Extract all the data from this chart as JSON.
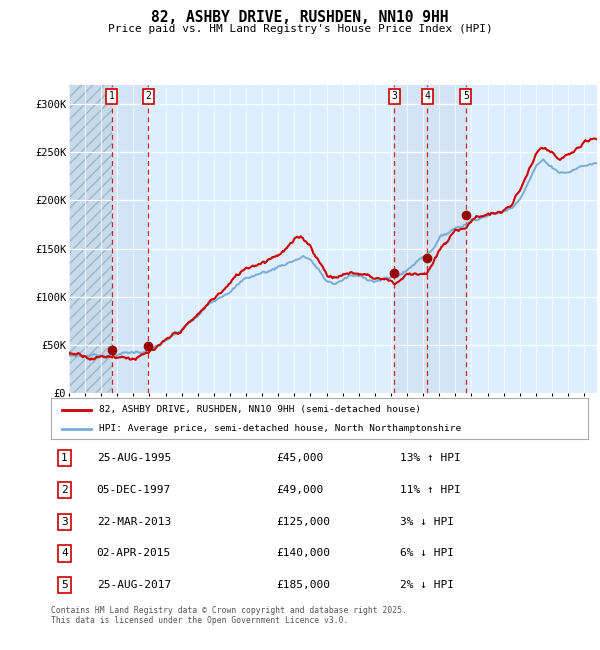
{
  "title": "82, ASHBY DRIVE, RUSHDEN, NN10 9HH",
  "subtitle": "Price paid vs. HM Land Registry's House Price Index (HPI)",
  "legend_line1": "82, ASHBY DRIVE, RUSHDEN, NN10 9HH (semi-detached house)",
  "legend_line2": "HPI: Average price, semi-detached house, North Northamptonshire",
  "footer": "Contains HM Land Registry data © Crown copyright and database right 2025.\nThis data is licensed under the Open Government Licence v3.0.",
  "transactions": [
    {
      "num": 1,
      "date": "25-AUG-1995",
      "price": 45000,
      "hpi": "13% ↑ HPI",
      "x": 1995.65
    },
    {
      "num": 2,
      "date": "05-DEC-1997",
      "price": 49000,
      "hpi": "11% ↑ HPI",
      "x": 1997.92
    },
    {
      "num": 3,
      "date": "22-MAR-2013",
      "price": 125000,
      "hpi": "3% ↓ HPI",
      "x": 2013.22
    },
    {
      "num": 4,
      "date": "02-APR-2015",
      "price": 140000,
      "hpi": "6% ↓ HPI",
      "x": 2015.25
    },
    {
      "num": 5,
      "date": "25-AUG-2017",
      "price": 185000,
      "hpi": "2% ↓ HPI",
      "x": 2017.65
    }
  ],
  "hpi_color": "#7aadd4",
  "price_color": "#cc0000",
  "background_color": "#ddeeff",
  "ylim": [
    0,
    320000
  ],
  "yticks": [
    0,
    50000,
    100000,
    150000,
    200000,
    250000,
    300000
  ],
  "xlim_start": 1993,
  "xlim_end": 2025.8,
  "hpi_anchors": {
    "1993.0": 38000,
    "1994.0": 39000,
    "1995.0": 40500,
    "1996.0": 43000,
    "1997.0": 44500,
    "1998.0": 48000,
    "1999.0": 55000,
    "2000.0": 65000,
    "2001.0": 78000,
    "2002.0": 95000,
    "2003.0": 110000,
    "2004.0": 122000,
    "2005.0": 128000,
    "2005.5": 130000,
    "2006.0": 135000,
    "2007.0": 143000,
    "2007.5": 147000,
    "2008.0": 144000,
    "2008.5": 132000,
    "2009.0": 120000,
    "2009.5": 118000,
    "2010.0": 122000,
    "2010.5": 126000,
    "2011.0": 124000,
    "2012.0": 122000,
    "2013.0": 124000,
    "2013.22": 125000,
    "2014.0": 132000,
    "2015.0": 148000,
    "2015.25": 150000,
    "2016.0": 168000,
    "2017.0": 180000,
    "2017.65": 185000,
    "2018.0": 190000,
    "2019.0": 198000,
    "2020.0": 200000,
    "2020.5": 205000,
    "2021.0": 218000,
    "2022.0": 252000,
    "2022.5": 258000,
    "2023.0": 252000,
    "2023.5": 248000,
    "2024.0": 248000,
    "2024.5": 252000,
    "2025.0": 255000,
    "2025.8": 258000
  },
  "price_anchors": {
    "1993.0": 41000,
    "1994.0": 42000,
    "1995.0": 43000,
    "1995.65": 45000,
    "1996.0": 46000,
    "1997.0": 47000,
    "1997.92": 49000,
    "1998.0": 50000,
    "1999.0": 56000,
    "2000.0": 67000,
    "2001.0": 80000,
    "2002.0": 97000,
    "2003.0": 112000,
    "2004.0": 128000,
    "2005.0": 138000,
    "2006.0": 150000,
    "2007.0": 163000,
    "2007.5": 165000,
    "2008.0": 158000,
    "2008.5": 145000,
    "2009.0": 132000,
    "2009.5": 128000,
    "2010.0": 132000,
    "2011.0": 133000,
    "2012.0": 130000,
    "2013.0": 128000,
    "2013.22": 125000,
    "2014.0": 135000,
    "2015.0": 140000,
    "2015.25": 140000,
    "2016.0": 160000,
    "2017.0": 178000,
    "2017.65": 185000,
    "2018.0": 192000,
    "2019.0": 200000,
    "2020.0": 202000,
    "2020.5": 208000,
    "2021.0": 222000,
    "2022.0": 258000,
    "2022.5": 262000,
    "2023.0": 256000,
    "2023.5": 244000,
    "2024.0": 250000,
    "2024.5": 255000,
    "2025.0": 258000,
    "2025.8": 260000
  }
}
